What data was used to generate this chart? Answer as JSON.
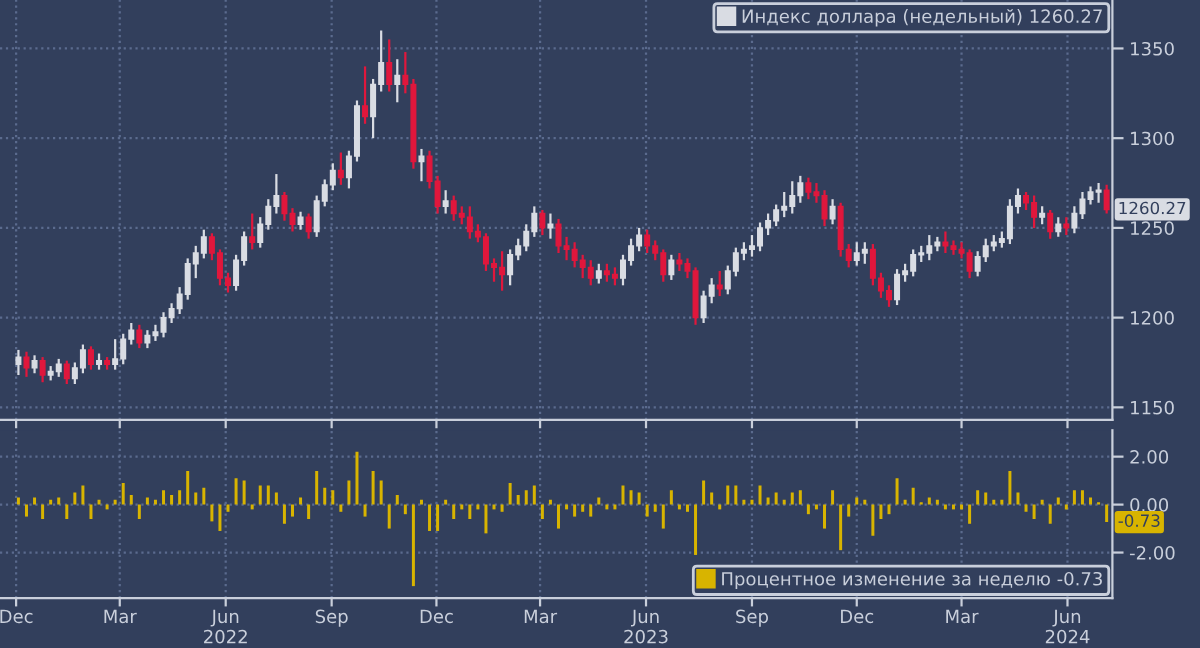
{
  "chart_data": [
    {
      "type": "candlestick",
      "tick_labels": "y",
      "grid": true,
      "legend": "top right",
      "xlim": [
        "2021-11-17",
        "2024-07-10"
      ],
      "xticks": [
        {
          "value": "2021-12-01",
          "label": null
        },
        {
          "value": "2022-03-01",
          "label": null
        },
        {
          "value": "2022-06-01",
          "label": null
        },
        {
          "value": "2022-09-01",
          "label": null
        },
        {
          "value": "2022-12-01",
          "label": null
        },
        {
          "value": "2023-03-01",
          "label": null
        },
        {
          "value": "2023-06-01",
          "label": null
        },
        {
          "value": "2023-09-01",
          "label": null
        },
        {
          "value": "2023-12-01",
          "label": null
        },
        {
          "value": "2024-03-01",
          "label": null
        },
        {
          "value": "2024-06-01",
          "label": null
        }
      ],
      "ylim": [
        1143,
        1377
      ],
      "yticks": [
        1150,
        1200,
        1250,
        1300,
        1350
      ],
      "annotations": [
        {
          "text": "1260.27",
          "x": "2024-07-05",
          "y": 1260.27
        }
      ],
      "x": [
        "2021-12-03",
        "2021-12-10",
        "2021-12-17",
        "2021-12-24",
        "2021-12-31",
        "2022-01-07",
        "2022-01-14",
        "2022-01-21",
        "2022-01-28",
        "2022-02-04",
        "2022-02-11",
        "2022-02-18",
        "2022-02-25",
        "2022-03-04",
        "2022-03-11",
        "2022-03-18",
        "2022-03-25",
        "2022-04-01",
        "2022-04-08",
        "2022-04-15",
        "2022-04-22",
        "2022-04-29",
        "2022-05-06",
        "2022-05-13",
        "2022-05-20",
        "2022-05-27",
        "2022-06-03",
        "2022-06-10",
        "2022-06-17",
        "2022-06-24",
        "2022-07-01",
        "2022-07-08",
        "2022-07-15",
        "2022-07-22",
        "2022-07-29",
        "2022-08-05",
        "2022-08-12",
        "2022-08-19",
        "2022-08-26",
        "2022-09-02",
        "2022-09-09",
        "2022-09-16",
        "2022-09-23",
        "2022-09-30",
        "2022-10-07",
        "2022-10-14",
        "2022-10-21",
        "2022-10-28",
        "2022-11-04",
        "2022-11-11",
        "2022-11-18",
        "2022-11-25",
        "2022-12-02",
        "2022-12-09",
        "2022-12-16",
        "2022-12-23",
        "2022-12-30",
        "2023-01-06",
        "2023-01-13",
        "2023-01-20",
        "2023-01-27",
        "2023-02-03",
        "2023-02-10",
        "2023-02-17",
        "2023-02-24",
        "2023-03-03",
        "2023-03-10",
        "2023-03-17",
        "2023-03-24",
        "2023-03-31",
        "2023-04-07",
        "2023-04-14",
        "2023-04-21",
        "2023-04-28",
        "2023-05-05",
        "2023-05-12",
        "2023-05-19",
        "2023-05-26",
        "2023-06-02",
        "2023-06-09",
        "2023-06-16",
        "2023-06-23",
        "2023-06-30",
        "2023-07-07",
        "2023-07-14",
        "2023-07-21",
        "2023-07-28",
        "2023-08-04",
        "2023-08-11",
        "2023-08-18",
        "2023-08-25",
        "2023-09-01",
        "2023-09-08",
        "2023-09-15",
        "2023-09-22",
        "2023-09-29",
        "2023-10-06",
        "2023-10-13",
        "2023-10-20",
        "2023-10-27",
        "2023-11-03",
        "2023-11-10",
        "2023-11-17",
        "2023-11-24",
        "2023-12-01",
        "2023-12-08",
        "2023-12-15",
        "2023-12-22",
        "2023-12-29",
        "2024-01-05",
        "2024-01-12",
        "2024-01-19",
        "2024-01-26",
        "2024-02-02",
        "2024-02-09",
        "2024-02-16",
        "2024-02-23",
        "2024-03-01",
        "2024-03-08",
        "2024-03-15",
        "2024-03-22",
        "2024-03-29",
        "2024-04-05",
        "2024-04-12",
        "2024-04-19",
        "2024-04-26",
        "2024-05-03",
        "2024-05-10",
        "2024-05-17",
        "2024-05-24",
        "2024-05-31",
        "2024-06-07",
        "2024-06-14",
        "2024-06-21",
        "2024-06-28",
        "2024-07-05"
      ],
      "series": [
        {
          "name": "Индекс доллара (недельный) 1260.27",
          "color": "#d9dce3",
          "ohlc": [
            [
              1174,
              1182,
              1168,
              1178
            ],
            [
              1178,
              1181,
              1167,
              1172
            ],
            [
              1172,
              1179,
              1169,
              1176
            ],
            [
              1176,
              1178,
              1164,
              1168
            ],
            [
              1168,
              1173,
              1165,
              1170
            ],
            [
              1170,
              1177,
              1167,
              1174
            ],
            [
              1174,
              1176,
              1163,
              1166
            ],
            [
              1166,
              1175,
              1163,
              1172
            ],
            [
              1172,
              1185,
              1169,
              1182
            ],
            [
              1182,
              1184,
              1171,
              1174
            ],
            [
              1174,
              1180,
              1171,
              1176
            ],
            [
              1176,
              1178,
              1171,
              1174
            ],
            [
              1174,
              1188,
              1171,
              1177
            ],
            [
              1177,
              1191,
              1174,
              1188
            ],
            [
              1188,
              1197,
              1185,
              1193
            ],
            [
              1193,
              1196,
              1183,
              1186
            ],
            [
              1186,
              1193,
              1183,
              1190
            ],
            [
              1190,
              1196,
              1187,
              1192
            ],
            [
              1192,
              1203,
              1189,
              1200
            ],
            [
              1200,
              1208,
              1197,
              1205
            ],
            [
              1205,
              1217,
              1202,
              1213
            ],
            [
              1213,
              1233,
              1210,
              1230
            ],
            [
              1230,
              1240,
              1222,
              1236
            ],
            [
              1236,
              1249,
              1233,
              1245
            ],
            [
              1245,
              1247,
              1232,
              1236
            ],
            [
              1236,
              1238,
              1218,
              1222
            ],
            [
              1222,
              1225,
              1214,
              1218
            ],
            [
              1218,
              1235,
              1215,
              1232
            ],
            [
              1232,
              1248,
              1229,
              1245
            ],
            [
              1245,
              1258,
              1238,
              1242
            ],
            [
              1242,
              1256,
              1239,
              1252
            ],
            [
              1252,
              1266,
              1249,
              1262
            ],
            [
              1262,
              1280,
              1258,
              1268
            ],
            [
              1268,
              1270,
              1254,
              1258
            ],
            [
              1258,
              1261,
              1248,
              1252
            ],
            [
              1252,
              1259,
              1249,
              1256
            ],
            [
              1256,
              1258,
              1244,
              1248
            ],
            [
              1248,
              1268,
              1245,
              1265
            ],
            [
              1265,
              1277,
              1262,
              1274
            ],
            [
              1274,
              1286,
              1271,
              1282
            ],
            [
              1282,
              1292,
              1274,
              1278
            ],
            [
              1278,
              1293,
              1272,
              1290
            ],
            [
              1290,
              1321,
              1287,
              1318
            ],
            [
              1318,
              1340,
              1308,
              1312
            ],
            [
              1312,
              1333,
              1300,
              1330
            ],
            [
              1330,
              1360,
              1326,
              1342
            ],
            [
              1342,
              1355,
              1326,
              1330
            ],
            [
              1330,
              1344,
              1320,
              1335
            ],
            [
              1335,
              1348,
              1325,
              1330
            ],
            [
              1330,
              1333,
              1283,
              1287
            ],
            [
              1287,
              1294,
              1276,
              1290
            ],
            [
              1290,
              1293,
              1272,
              1276
            ],
            [
              1276,
              1279,
              1258,
              1262
            ],
            [
              1262,
              1271,
              1258,
              1265
            ],
            [
              1265,
              1268,
              1254,
              1258
            ],
            [
              1258,
              1262,
              1252,
              1256
            ],
            [
              1256,
              1262,
              1244,
              1248
            ],
            [
              1248,
              1252,
              1242,
              1245
            ],
            [
              1245,
              1247,
              1226,
              1230
            ],
            [
              1230,
              1233,
              1220,
              1228
            ],
            [
              1228,
              1237,
              1215,
              1224
            ],
            [
              1224,
              1238,
              1218,
              1235
            ],
            [
              1235,
              1244,
              1232,
              1240
            ],
            [
              1240,
              1252,
              1237,
              1248
            ],
            [
              1248,
              1262,
              1245,
              1258
            ],
            [
              1258,
              1260,
              1246,
              1250
            ],
            [
              1250,
              1258,
              1244,
              1252
            ],
            [
              1252,
              1255,
              1236,
              1240
            ],
            [
              1240,
              1245,
              1232,
              1238
            ],
            [
              1238,
              1242,
              1228,
              1232
            ],
            [
              1232,
              1235,
              1222,
              1228
            ],
            [
              1228,
              1232,
              1218,
              1222
            ],
            [
              1222,
              1230,
              1219,
              1226
            ],
            [
              1226,
              1230,
              1220,
              1224
            ],
            [
              1224,
              1228,
              1218,
              1222
            ],
            [
              1222,
              1235,
              1218,
              1232
            ],
            [
              1232,
              1244,
              1229,
              1240
            ],
            [
              1240,
              1250,
              1237,
              1246
            ],
            [
              1246,
              1249,
              1236,
              1240
            ],
            [
              1240,
              1243,
              1232,
              1236
            ],
            [
              1236,
              1238,
              1220,
              1224
            ],
            [
              1224,
              1235,
              1221,
              1232
            ],
            [
              1232,
              1236,
              1226,
              1230
            ],
            [
              1230,
              1233,
              1222,
              1226
            ],
            [
              1226,
              1228,
              1196,
              1200
            ],
            [
              1200,
              1215,
              1197,
              1212
            ],
            [
              1212,
              1222,
              1208,
              1218
            ],
            [
              1218,
              1226,
              1212,
              1216
            ],
            [
              1216,
              1229,
              1213,
              1226
            ],
            [
              1226,
              1239,
              1223,
              1236
            ],
            [
              1236,
              1242,
              1232,
              1238
            ],
            [
              1238,
              1246,
              1234,
              1240
            ],
            [
              1240,
              1253,
              1237,
              1250
            ],
            [
              1250,
              1258,
              1246,
              1254
            ],
            [
              1254,
              1263,
              1251,
              1260
            ],
            [
              1260,
              1270,
              1256,
              1262
            ],
            [
              1262,
              1276,
              1258,
              1268
            ],
            [
              1268,
              1279,
              1264,
              1275
            ],
            [
              1275,
              1278,
              1266,
              1270
            ],
            [
              1270,
              1275,
              1264,
              1268
            ],
            [
              1268,
              1271,
              1251,
              1255
            ],
            [
              1255,
              1266,
              1252,
              1262
            ],
            [
              1262,
              1264,
              1234,
              1238
            ],
            [
              1238,
              1241,
              1228,
              1232
            ],
            [
              1232,
              1242,
              1229,
              1236
            ],
            [
              1236,
              1242,
              1230,
              1238
            ],
            [
              1238,
              1241,
              1218,
              1222
            ],
            [
              1222,
              1225,
              1211,
              1215
            ],
            [
              1215,
              1218,
              1206,
              1210
            ],
            [
              1210,
              1227,
              1207,
              1224
            ],
            [
              1224,
              1230,
              1220,
              1226
            ],
            [
              1226,
              1238,
              1223,
              1235
            ],
            [
              1235,
              1240,
              1231,
              1236
            ],
            [
              1236,
              1246,
              1232,
              1240
            ],
            [
              1240,
              1245,
              1237,
              1242
            ],
            [
              1242,
              1248,
              1236,
              1240
            ],
            [
              1240,
              1243,
              1235,
              1238
            ],
            [
              1238,
              1242,
              1233,
              1236
            ],
            [
              1236,
              1238,
              1222,
              1226
            ],
            [
              1226,
              1237,
              1223,
              1234
            ],
            [
              1234,
              1244,
              1231,
              1240
            ],
            [
              1240,
              1246,
              1237,
              1242
            ],
            [
              1242,
              1248,
              1239,
              1244
            ],
            [
              1244,
              1266,
              1241,
              1262
            ],
            [
              1262,
              1272,
              1258,
              1268
            ],
            [
              1268,
              1270,
              1260,
              1264
            ],
            [
              1264,
              1268,
              1250,
              1256
            ],
            [
              1256,
              1262,
              1252,
              1258
            ],
            [
              1258,
              1260,
              1244,
              1248
            ],
            [
              1248,
              1256,
              1245,
              1252
            ],
            [
              1252,
              1256,
              1246,
              1250
            ],
            [
              1250,
              1262,
              1247,
              1258
            ],
            [
              1258,
              1270,
              1255,
              1266
            ],
            [
              1266,
              1273,
              1263,
              1270
            ],
            [
              1270,
              1275,
              1264,
              1271
            ],
            [
              1271,
              1274,
              1258,
              1260.27
            ]
          ],
          "colors": [
            "#d9dce3",
            "#e0173c",
            "#d9dce3",
            "#e0173c",
            "#d9dce3",
            "#d9dce3",
            "#e0173c",
            "#d9dce3",
            "#d9dce3",
            "#e0173c",
            "#d9dce3",
            "#e0173c",
            "#d9dce3",
            "#d9dce3",
            "#d9dce3",
            "#e0173c",
            "#d9dce3",
            "#d9dce3",
            "#d9dce3",
            "#d9dce3",
            "#d9dce3",
            "#d9dce3",
            "#d9dce3",
            "#d9dce3",
            "#e0173c",
            "#e0173c",
            "#e0173c",
            "#d9dce3",
            "#d9dce3",
            "#e0173c",
            "#d9dce3",
            "#d9dce3",
            "#d9dce3",
            "#e0173c",
            "#e0173c",
            "#d9dce3",
            "#e0173c",
            "#d9dce3",
            "#d9dce3",
            "#d9dce3",
            "#e0173c",
            "#d9dce3",
            "#d9dce3",
            "#e0173c",
            "#d9dce3",
            "#d9dce3",
            "#e0173c",
            "#d9dce3",
            "#e0173c",
            "#e0173c",
            "#d9dce3",
            "#e0173c",
            "#e0173c",
            "#d9dce3",
            "#e0173c",
            "#e0173c",
            "#e0173c",
            "#e0173c",
            "#e0173c",
            "#e0173c",
            "#e0173c",
            "#d9dce3",
            "#d9dce3",
            "#d9dce3",
            "#d9dce3",
            "#e0173c",
            "#d9dce3",
            "#e0173c",
            "#e0173c",
            "#e0173c",
            "#e0173c",
            "#e0173c",
            "#d9dce3",
            "#e0173c",
            "#e0173c",
            "#d9dce3",
            "#d9dce3",
            "#d9dce3",
            "#e0173c",
            "#e0173c",
            "#e0173c",
            "#d9dce3",
            "#e0173c",
            "#e0173c",
            "#e0173c",
            "#d9dce3",
            "#d9dce3",
            "#e0173c",
            "#d9dce3",
            "#d9dce3",
            "#d9dce3",
            "#d9dce3",
            "#d9dce3",
            "#d9dce3",
            "#d9dce3",
            "#d9dce3",
            "#d9dce3",
            "#d9dce3",
            "#e0173c",
            "#e0173c",
            "#e0173c",
            "#d9dce3",
            "#e0173c",
            "#e0173c",
            "#d9dce3",
            "#d9dce3",
            "#e0173c",
            "#e0173c",
            "#e0173c",
            "#d9dce3",
            "#d9dce3",
            "#d9dce3",
            "#d9dce3",
            "#d9dce3",
            "#d9dce3",
            "#e0173c",
            "#e0173c",
            "#e0173c",
            "#e0173c",
            "#d9dce3",
            "#d9dce3",
            "#d9dce3",
            "#d9dce3",
            "#d9dce3",
            "#d9dce3",
            "#e0173c",
            "#e0173c",
            "#d9dce3",
            "#e0173c",
            "#d9dce3",
            "#e0173c",
            "#d9dce3",
            "#d9dce3",
            "#d9dce3",
            "#d9dce3",
            "#e0173c"
          ]
        }
      ]
    },
    {
      "type": "bar",
      "grid": true,
      "legend": "bottom right",
      "xlim": [
        "2021-11-17",
        "2024-07-10"
      ],
      "xticks": [
        {
          "value": "2021-12-01",
          "label": "Dec"
        },
        {
          "value": "2022-03-01",
          "label": "Mar"
        },
        {
          "value": "2022-06-01",
          "label": "Jun\n2022"
        },
        {
          "value": "2022-09-01",
          "label": "Sep"
        },
        {
          "value": "2022-12-01",
          "label": "Dec"
        },
        {
          "value": "2023-03-01",
          "label": "Mar"
        },
        {
          "value": "2023-06-01",
          "label": "Jun\n2023"
        },
        {
          "value": "2023-09-01",
          "label": "Sep"
        },
        {
          "value": "2023-12-01",
          "label": "Dec"
        },
        {
          "value": "2024-03-01",
          "label": "Mar"
        },
        {
          "value": "2024-06-01",
          "label": "Jun\n2024"
        }
      ],
      "ylim": [
        -3.9,
        3.1
      ],
      "yticks": [
        {
          "value": 2,
          "label": "2.00"
        },
        {
          "value": 0,
          "label": "0.00"
        },
        {
          "value": -2,
          "label": "-2.00"
        }
      ],
      "annotations": [
        {
          "text": "-0.73",
          "x": "2024-07-05",
          "y": -0.73
        }
      ],
      "x": [
        "2021-12-03",
        "2021-12-10",
        "2021-12-17",
        "2021-12-24",
        "2021-12-31",
        "2022-01-07",
        "2022-01-14",
        "2022-01-21",
        "2022-01-28",
        "2022-02-04",
        "2022-02-11",
        "2022-02-18",
        "2022-02-25",
        "2022-03-04",
        "2022-03-11",
        "2022-03-18",
        "2022-03-25",
        "2022-04-01",
        "2022-04-08",
        "2022-04-15",
        "2022-04-22",
        "2022-04-29",
        "2022-05-06",
        "2022-05-13",
        "2022-05-20",
        "2022-05-27",
        "2022-06-03",
        "2022-06-10",
        "2022-06-17",
        "2022-06-24",
        "2022-07-01",
        "2022-07-08",
        "2022-07-15",
        "2022-07-22",
        "2022-07-29",
        "2022-08-05",
        "2022-08-12",
        "2022-08-19",
        "2022-08-26",
        "2022-09-02",
        "2022-09-09",
        "2022-09-16",
        "2022-09-23",
        "2022-09-30",
        "2022-10-07",
        "2022-10-14",
        "2022-10-21",
        "2022-10-28",
        "2022-11-04",
        "2022-11-11",
        "2022-11-18",
        "2022-11-25",
        "2022-12-02",
        "2022-12-09",
        "2022-12-16",
        "2022-12-23",
        "2022-12-30",
        "2023-01-06",
        "2023-01-13",
        "2023-01-20",
        "2023-01-27",
        "2023-02-03",
        "2023-02-10",
        "2023-02-17",
        "2023-02-24",
        "2023-03-03",
        "2023-03-10",
        "2023-03-17",
        "2023-03-24",
        "2023-03-31",
        "2023-04-07",
        "2023-04-14",
        "2023-04-21",
        "2023-04-28",
        "2023-05-05",
        "2023-05-12",
        "2023-05-19",
        "2023-05-26",
        "2023-06-02",
        "2023-06-09",
        "2023-06-16",
        "2023-06-23",
        "2023-06-30",
        "2023-07-07",
        "2023-07-14",
        "2023-07-21",
        "2023-07-28",
        "2023-08-04",
        "2023-08-11",
        "2023-08-18",
        "2023-08-25",
        "2023-09-01",
        "2023-09-08",
        "2023-09-15",
        "2023-09-22",
        "2023-09-29",
        "2023-10-06",
        "2023-10-13",
        "2023-10-20",
        "2023-10-27",
        "2023-11-03",
        "2023-11-10",
        "2023-11-17",
        "2023-11-24",
        "2023-12-01",
        "2023-12-08",
        "2023-12-15",
        "2023-12-22",
        "2023-12-29",
        "2024-01-05",
        "2024-01-12",
        "2024-01-19",
        "2024-01-26",
        "2024-02-02",
        "2024-02-09",
        "2024-02-16",
        "2024-02-23",
        "2024-03-01",
        "2024-03-08",
        "2024-03-15",
        "2024-03-22",
        "2024-03-29",
        "2024-04-05",
        "2024-04-12",
        "2024-04-19",
        "2024-04-26",
        "2024-05-03",
        "2024-05-10",
        "2024-05-17",
        "2024-05-24",
        "2024-05-31",
        "2024-06-07",
        "2024-06-14",
        "2024-06-21",
        "2024-06-28",
        "2024-07-05"
      ],
      "series": [
        {
          "name": "Процентное изменение за неделю -0.73",
          "color": "#d8b400",
          "values": [
            0.3,
            -0.5,
            0.3,
            -0.6,
            0.2,
            0.3,
            -0.6,
            0.5,
            0.8,
            -0.6,
            0.2,
            -0.2,
            0.2,
            0.9,
            0.4,
            -0.6,
            0.3,
            0.2,
            0.6,
            0.4,
            0.6,
            1.4,
            0.5,
            0.7,
            -0.7,
            -1.1,
            -0.3,
            1.1,
            1.0,
            -0.2,
            0.8,
            0.8,
            0.5,
            -0.8,
            -0.5,
            0.3,
            -0.6,
            1.4,
            0.7,
            0.6,
            -0.3,
            1.0,
            2.2,
            -0.5,
            1.4,
            1.0,
            -1.0,
            0.4,
            -0.4,
            -3.4,
            0.2,
            -1.1,
            -1.1,
            0.2,
            -0.6,
            -0.2,
            -0.6,
            -0.2,
            -1.2,
            -0.2,
            -0.3,
            0.9,
            0.4,
            0.6,
            0.8,
            -0.6,
            0.2,
            -1.0,
            -0.2,
            -0.5,
            -0.3,
            -0.5,
            0.3,
            -0.2,
            -0.2,
            0.8,
            0.6,
            0.5,
            -0.5,
            -0.3,
            -1.0,
            0.6,
            -0.2,
            -0.3,
            -2.1,
            1.0,
            0.5,
            -0.2,
            0.8,
            0.8,
            0.2,
            0.2,
            0.8,
            0.3,
            0.5,
            0.2,
            0.5,
            0.6,
            -0.4,
            -0.2,
            -1.0,
            0.6,
            -1.9,
            -0.5,
            0.3,
            0.2,
            -1.3,
            -0.6,
            -0.4,
            1.1,
            0.2,
            0.7,
            0.1,
            0.3,
            0.2,
            -0.2,
            -0.2,
            -0.2,
            -0.8,
            0.6,
            0.5,
            0.2,
            0.2,
            1.4,
            0.5,
            -0.3,
            -0.6,
            0.2,
            -0.8,
            0.3,
            -0.2,
            0.6,
            0.6,
            0.3,
            0.1,
            -0.73
          ]
        }
      ]
    }
  ]
}
